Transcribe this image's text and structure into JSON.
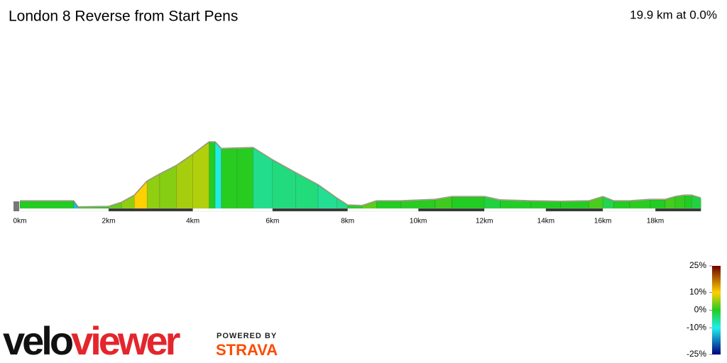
{
  "chart_data": {
    "type": "area",
    "title": "London 8 Reverse from Start Pens",
    "subtitle": "19.9 km at 0.0%",
    "x": [
      0,
      1.2,
      1.3,
      2.0,
      2.3,
      2.6,
      2.9,
      3.2,
      3.6,
      4.0,
      4.4,
      4.55,
      4.7,
      5.1,
      5.5,
      6.0,
      6.6,
      7.2,
      7.7,
      8.0,
      8.4,
      8.8,
      9.5,
      10.5,
      11.0,
      12.0,
      12.5,
      13.5,
      14.5,
      15.5,
      16.0,
      16.4,
      17.0,
      17.8,
      18.4,
      18.8,
      19.2,
      19.5,
      19.9
    ],
    "values": [
      18,
      18,
      5,
      6,
      15,
      30,
      60,
      75,
      93,
      117,
      143,
      143,
      129,
      130,
      131,
      105,
      78,
      52,
      24,
      9,
      8,
      18,
      18,
      21,
      27,
      27,
      20,
      18,
      17,
      18,
      27,
      18,
      18,
      21,
      21,
      27,
      30,
      30,
      24
    ],
    "xlim": [
      0,
      19.9
    ],
    "ylim": [
      0,
      200
    ],
    "xticks": [
      {
        "value": 0,
        "label": "0km"
      },
      {
        "value": 2,
        "label": "2km"
      },
      {
        "value": 4,
        "label": "4km"
      },
      {
        "value": 6,
        "label": "6km"
      },
      {
        "value": 8,
        "label": "8km"
      },
      {
        "value": 10,
        "label": "10km"
      },
      {
        "value": 12,
        "label": "12km"
      },
      {
        "value": 14,
        "label": "14km"
      },
      {
        "value": 16,
        "label": "16km"
      },
      {
        "value": 18,
        "label": "18km"
      }
    ],
    "colorbar": {
      "lim": [
        -25,
        25
      ],
      "ticks": [
        {
          "value": 25,
          "label": "25%"
        },
        {
          "value": 10,
          "label": "10%"
        },
        {
          "value": 0,
          "label": "0%"
        },
        {
          "value": -10,
          "label": "-10%"
        },
        {
          "value": -25,
          "label": "-25%"
        }
      ],
      "colors": [
        "#6e0000",
        "#ffd000",
        "#22cc22",
        "#22eeee",
        "#000080"
      ]
    }
  },
  "logo": {
    "brand": [
      "velo",
      "viewer"
    ],
    "powered": "POWERED BY",
    "partner": "STRAVA"
  }
}
